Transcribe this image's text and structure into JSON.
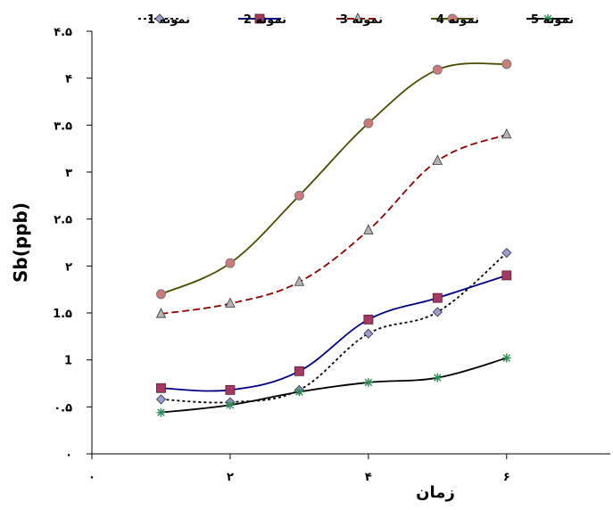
{
  "chart_data": {
    "type": "line",
    "xlabel": "زمان",
    "ylabel": "Sb(ppb)",
    "xlim": [
      0,
      7.5
    ],
    "ylim": [
      0,
      4.5
    ],
    "x_ticks": [
      {
        "value": 0,
        "label": "٠"
      },
      {
        "value": 2,
        "label": "٢"
      },
      {
        "value": 4,
        "label": "۴"
      },
      {
        "value": 6,
        "label": "۶"
      }
    ],
    "y_ticks": [
      {
        "value": 0,
        "label": "٠"
      },
      {
        "value": 0.5,
        "label": "٠.۵"
      },
      {
        "value": 1,
        "label": "1"
      },
      {
        "value": 1.5,
        "label": "1.۵"
      },
      {
        "value": 2,
        "label": "٢"
      },
      {
        "value": 2.5,
        "label": "٢.۵"
      },
      {
        "value": 3,
        "label": "٣"
      },
      {
        "value": 3.5,
        "label": "٣.۵"
      },
      {
        "value": 4,
        "label": "۴"
      },
      {
        "value": 4.5,
        "label": "۴.۵"
      }
    ],
    "grid": false,
    "legend_position": "top",
    "x": [
      1,
      2,
      3,
      4,
      5,
      6
    ],
    "series": [
      {
        "name": "نمونه 1",
        "values": [
          0.58,
          0.55,
          0.68,
          1.28,
          1.51,
          2.14
        ],
        "color": "#000000",
        "dash": "dotted",
        "marker": "diamond",
        "marker_fill": "#9a9ccf"
      },
      {
        "name": "نمونه 2",
        "values": [
          0.7,
          0.68,
          0.88,
          1.43,
          1.66,
          1.9
        ],
        "color": "#000080",
        "dash": "solid",
        "marker": "square",
        "marker_fill": "#a33a63"
      },
      {
        "name": "نمونه 3",
        "values": [
          1.49,
          1.6,
          1.83,
          2.38,
          3.12,
          3.4
        ],
        "color": "#8b0000",
        "dash": "dashed",
        "marker": "triangle",
        "marker_fill": "#b5b5b5"
      },
      {
        "name": "نمونه 4",
        "values": [
          1.7,
          2.03,
          2.75,
          3.52,
          4.09,
          4.15
        ],
        "color": "#4a4a00",
        "dash": "solid",
        "marker": "circle",
        "marker_fill": "#cc7a7a"
      },
      {
        "name": "نمونه 5",
        "values": [
          0.44,
          0.52,
          0.66,
          0.76,
          0.81,
          1.02
        ],
        "color": "#000000",
        "dash": "solid",
        "marker": "star",
        "marker_fill": "#2e8b57"
      }
    ]
  }
}
